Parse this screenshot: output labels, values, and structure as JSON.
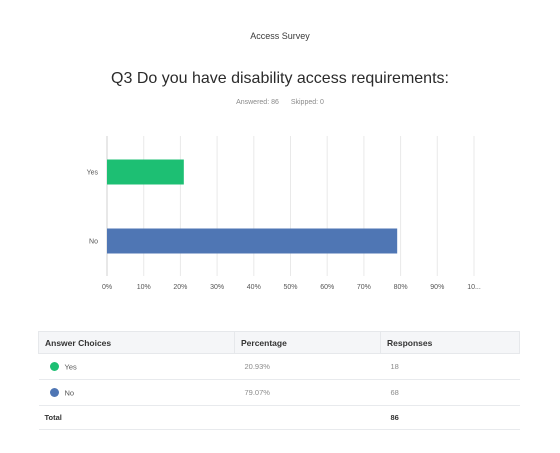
{
  "survey": {
    "title": "Access Survey"
  },
  "question": {
    "title": "Q3 Do you have disability access requirements:",
    "answered": "Answered: 86",
    "skipped": "Skipped: 0"
  },
  "chart_data": {
    "type": "bar",
    "orientation": "horizontal",
    "categories": [
      "Yes",
      "No"
    ],
    "values": [
      20.93,
      79.07
    ],
    "colors": [
      "#1dbf73",
      "#4f76b4"
    ],
    "xlim": [
      0,
      100
    ],
    "x_ticks": [
      "0%",
      "10%",
      "20%",
      "30%",
      "40%",
      "50%",
      "60%",
      "70%",
      "80%",
      "90%",
      "10..."
    ],
    "grid": true
  },
  "table": {
    "headers": [
      "Answer Choices",
      "Percentage",
      "Responses"
    ],
    "rows": [
      {
        "choice": "Yes",
        "percentage": "20.93%",
        "responses": "18",
        "color": "#1dbf73"
      },
      {
        "choice": "No",
        "percentage": "79.07%",
        "responses": "68",
        "color": "#4f76b4"
      }
    ],
    "total_label": "Total",
    "total_value": "86"
  }
}
